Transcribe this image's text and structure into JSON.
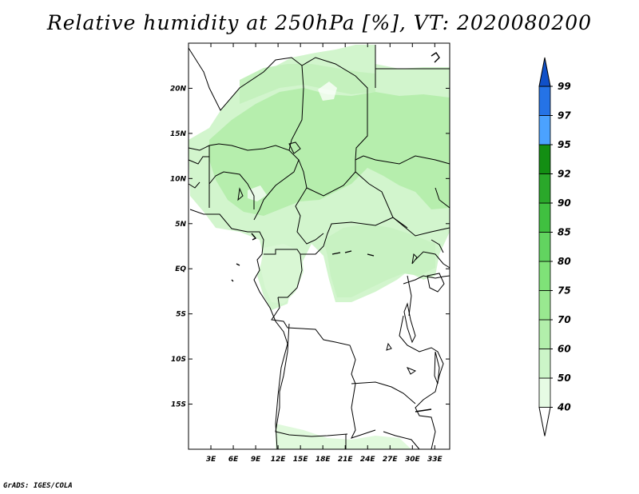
{
  "title": "Relative humidity at 250hPa [%], VT: 2020080200",
  "credit": "GrADS: IGES/COLA",
  "map": {
    "lon_range": [
      0,
      35
    ],
    "lat_range": [
      -20,
      25
    ],
    "x_ticks": [
      "3E",
      "6E",
      "9E",
      "12E",
      "15E",
      "18E",
      "21E",
      "24E",
      "27E",
      "30E",
      "33E"
    ],
    "x_tick_lons": [
      3,
      6,
      9,
      12,
      15,
      18,
      21,
      24,
      27,
      30,
      33
    ],
    "y_ticks": [
      "20N",
      "15N",
      "10N",
      "5N",
      "EQ",
      "5S",
      "10S",
      "15S"
    ],
    "y_tick_lats": [
      20,
      15,
      10,
      5,
      0,
      -5,
      -10,
      -15
    ]
  },
  "colorbar": {
    "labels": [
      "40",
      "50",
      "60",
      "70",
      "75",
      "80",
      "85",
      "90",
      "92",
      "95",
      "97",
      "99"
    ],
    "colors": [
      "#ffffff",
      "#e6fbe4",
      "#ccf5c8",
      "#b2efab",
      "#99e990",
      "#7fe278",
      "#62d460",
      "#40c040",
      "#2aa82a",
      "#138e13",
      "#4ba2ff",
      "#2573e6",
      "#1050c8"
    ]
  },
  "colors": {
    "light_green": "#d2f5cd",
    "mid_green": "#b6eead",
    "pale_green": "#e6fbe3"
  }
}
